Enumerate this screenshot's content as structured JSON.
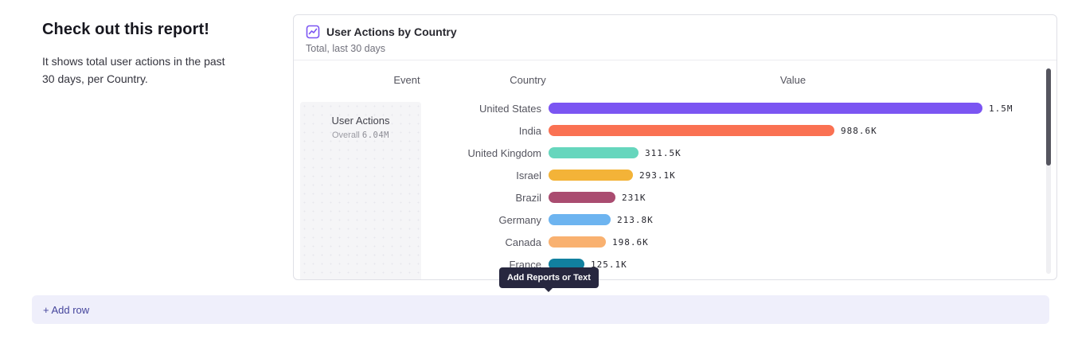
{
  "intro": {
    "title": "Check out this report!",
    "description": "It shows total user actions in the past 30 days, per Country."
  },
  "report_card": {
    "title": "User Actions by Country",
    "subtitle": "Total, last 30 days",
    "columns": [
      "Event",
      "Country",
      "Value"
    ],
    "event": {
      "name": "User Actions",
      "overall_label": "Overall",
      "overall_value": "6.04M"
    }
  },
  "chart_data": {
    "type": "bar",
    "orientation": "horizontal",
    "title": "User Actions by Country",
    "subtitle": "Total, last 30 days",
    "categories": [
      "United States",
      "India",
      "United Kingdom",
      "Israel",
      "Brazil",
      "Germany",
      "Canada",
      "France"
    ],
    "values": [
      1500000,
      988600,
      311500,
      293100,
      231000,
      213800,
      198600,
      125100
    ],
    "value_labels": [
      "1.5M",
      "988.6K",
      "311.5K",
      "293.1K",
      "231K",
      "213.8K",
      "198.6K",
      "125.1K"
    ],
    "bar_colors": [
      "#7b55f2",
      "#fa7152",
      "#66d6bd",
      "#f3b338",
      "#aa4c70",
      "#6db4f0",
      "#f9b170",
      "#11809f"
    ],
    "xlim": [
      0,
      1500000
    ],
    "legend": "none",
    "grid": false
  },
  "tooltip": {
    "label": "Add Reports or Text"
  },
  "add_row": {
    "label": "+ Add row"
  },
  "colors": {
    "accent_purple": "#7b55f2",
    "add_row_bg": "#efeffb",
    "add_row_text": "#45459c",
    "tooltip_bg": "#27273f"
  }
}
